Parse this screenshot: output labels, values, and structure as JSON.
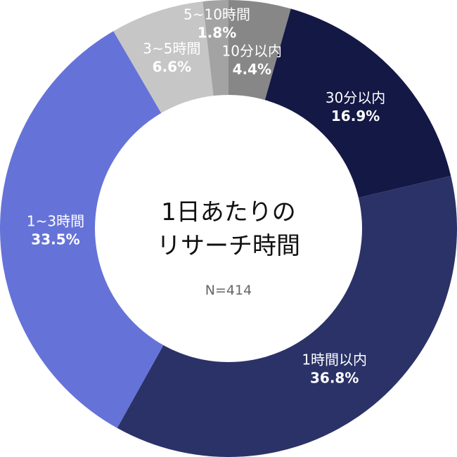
{
  "chart_data": {
    "type": "pie",
    "donut": true,
    "center_title_lines": [
      "1日あたりの",
      "リサーチ時間"
    ],
    "center_subtitle": "N=414",
    "slices": [
      {
        "label": "10分以内",
        "value": 4.4,
        "value_text": "4.4%",
        "color": "#878787"
      },
      {
        "label": "30分以内",
        "value": 16.9,
        "value_text": "16.9%",
        "color": "#141845"
      },
      {
        "label": "1時間以内",
        "value": 36.8,
        "value_text": "36.8%",
        "color": "#2b3268"
      },
      {
        "label": "1~3時間",
        "value": 33.5,
        "value_text": "33.5%",
        "color": "#6573d8"
      },
      {
        "label": "3~5時間",
        "value": 6.6,
        "value_text": "6.6%",
        "color": "#c6c6c6"
      },
      {
        "label": "5~10時間",
        "value": 1.8,
        "value_text": "1.8%",
        "color": "#a3a3a3"
      }
    ]
  }
}
